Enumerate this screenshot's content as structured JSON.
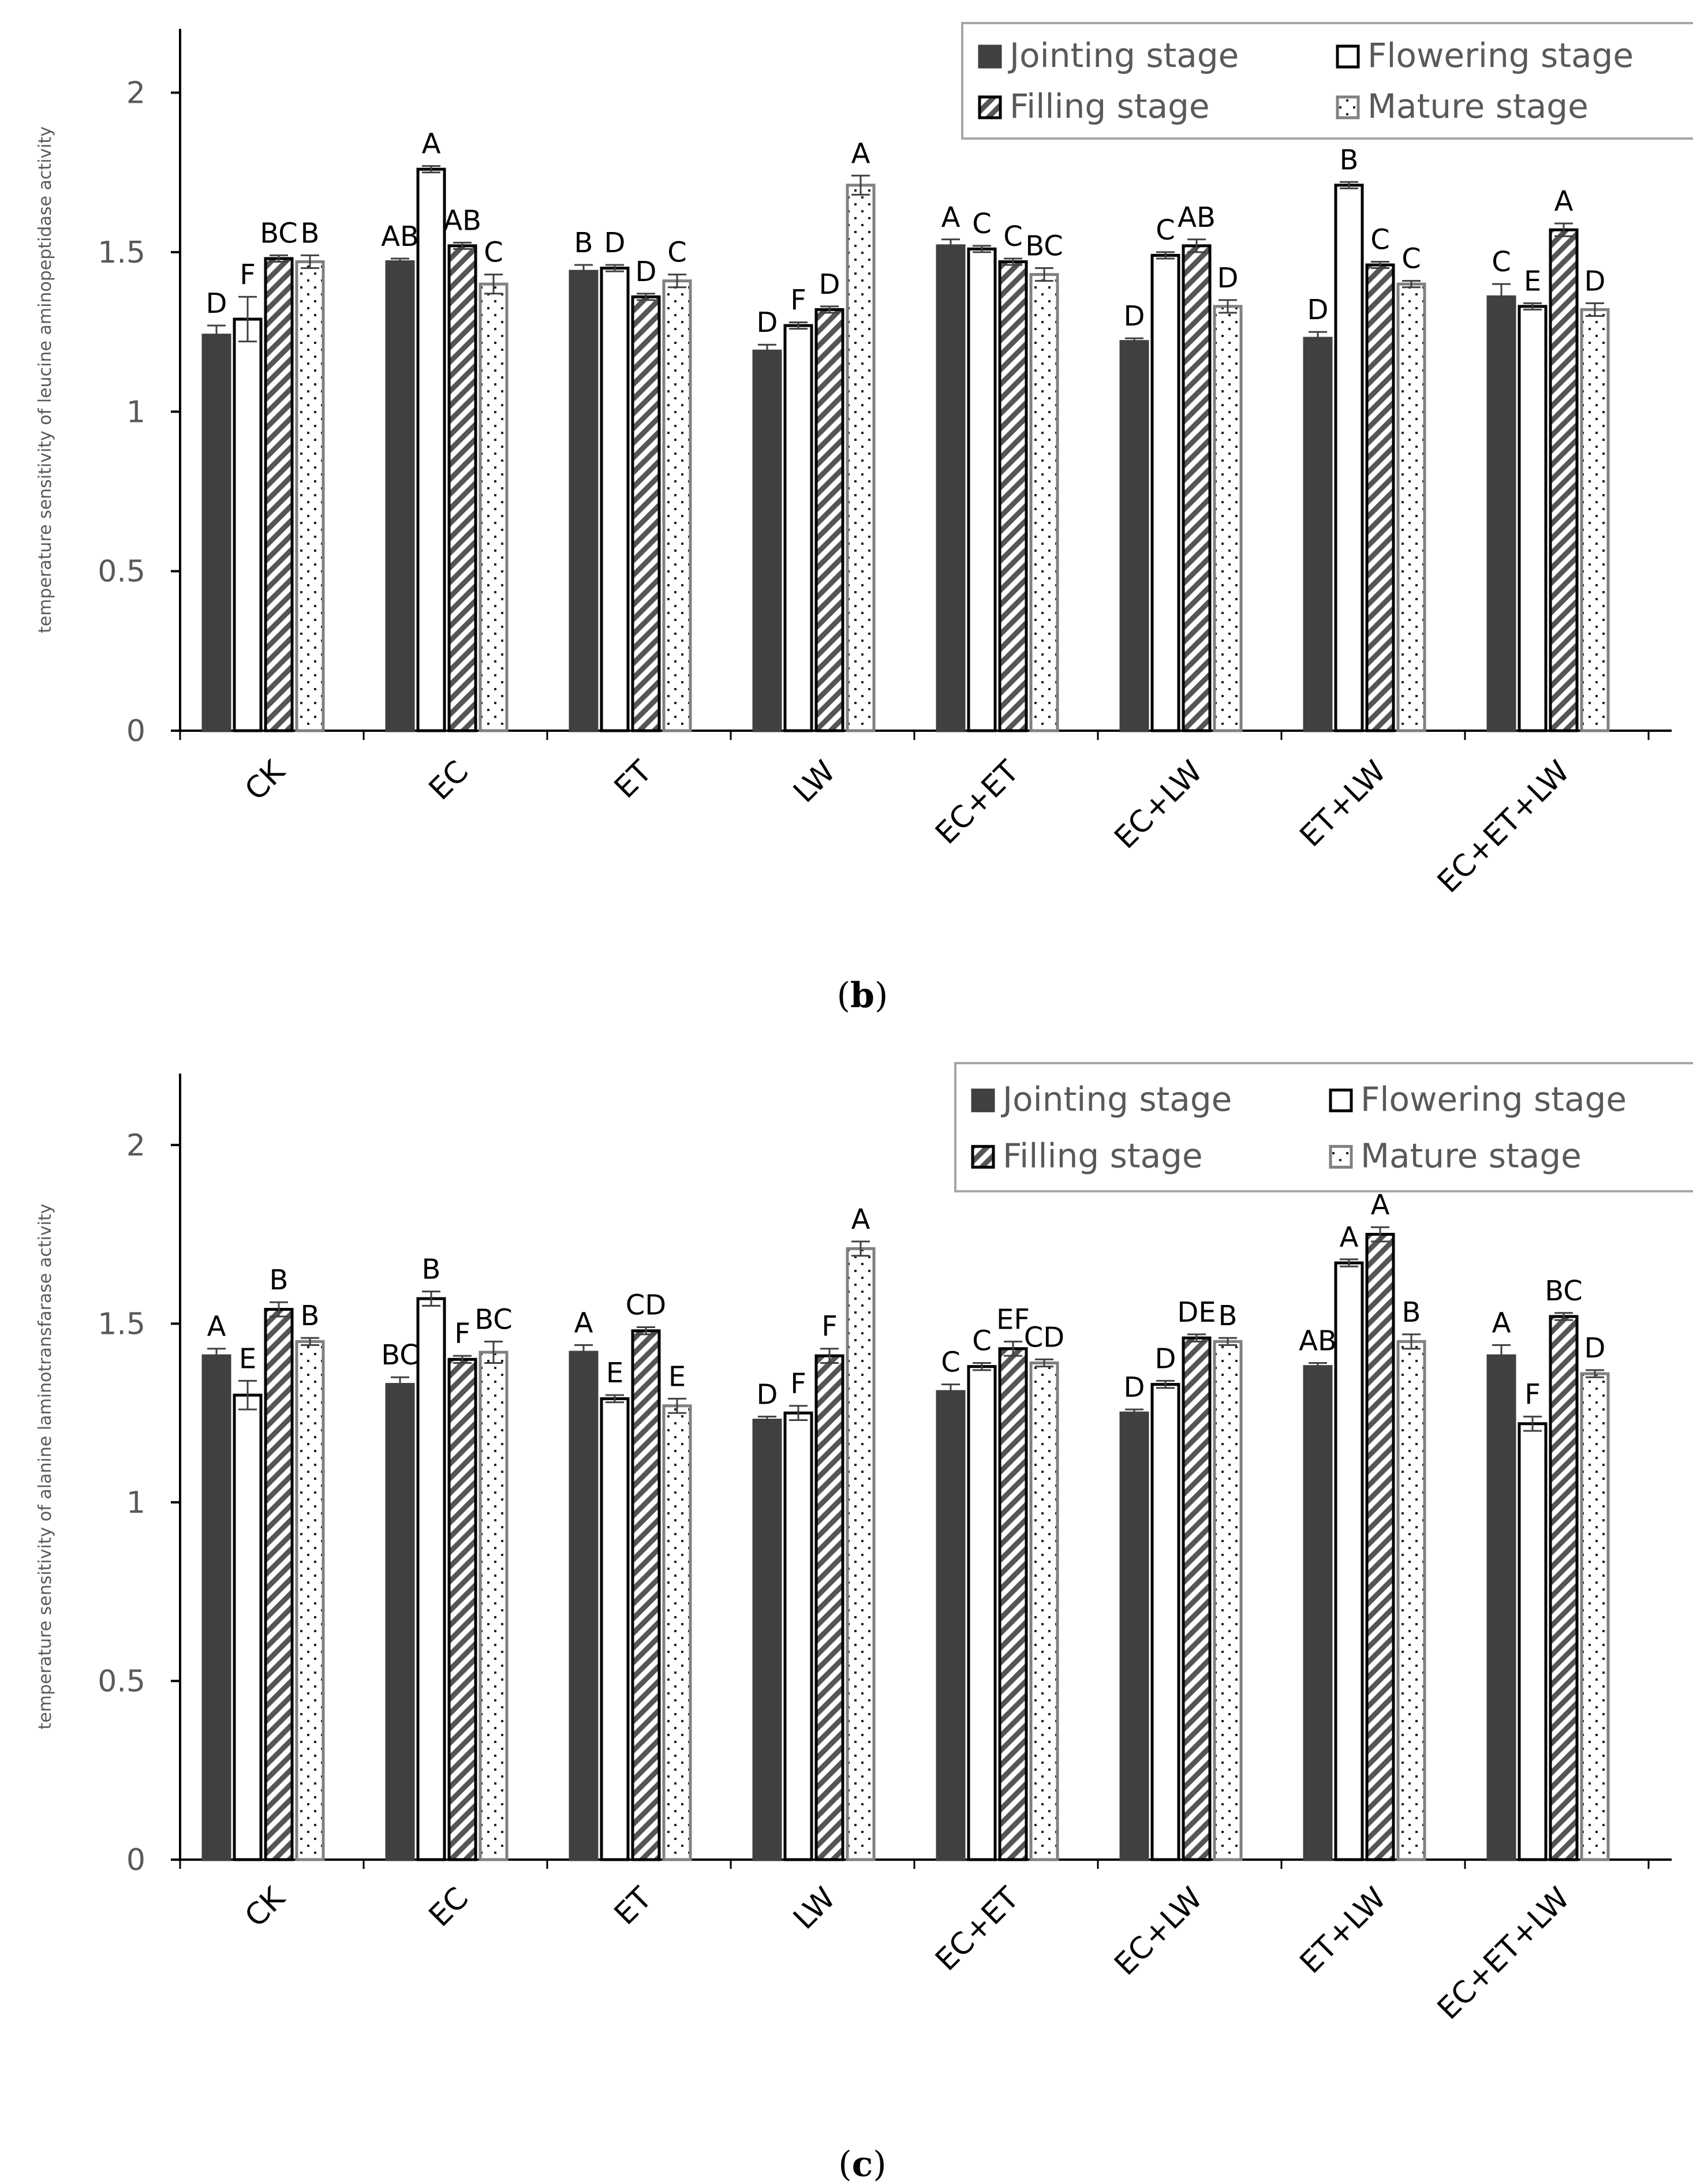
{
  "series_style": {
    "Jointing stage": {
      "fill": "#404040",
      "stroke": "#404040",
      "pattern": "solid"
    },
    "Flowering stage": {
      "fill": "#ffffff",
      "stroke": "#000000",
      "pattern": "none"
    },
    "Filling stage": {
      "fill": "#ffffff",
      "stroke": "#000000",
      "pattern": "diagonal"
    },
    "Mature stage": {
      "fill": "#ffffff",
      "stroke": "#808080",
      "pattern": "dots"
    }
  },
  "chart_data": [
    {
      "type": "bar",
      "panel_label": "b",
      "ylabel": "temperature sensitivity of leucine aminopeptidase activity",
      "xlabel": "",
      "ylim": [
        0,
        2.2
      ],
      "yticks": [
        0,
        0.5,
        1,
        1.5,
        2
      ],
      "ytick_labels": [
        "0",
        "0.5",
        "1",
        "1.5",
        "2"
      ],
      "legend_position": "top-right",
      "categories": [
        "CK",
        "EC",
        "ET",
        "LW",
        "EC+ET",
        "EC+LW",
        "ET+LW",
        "EC+ET+LW"
      ],
      "series": [
        {
          "name": "Jointing stage",
          "values": [
            1.24,
            1.47,
            1.44,
            1.19,
            1.52,
            1.22,
            1.23,
            1.36
          ],
          "errors": [
            0.03,
            0.01,
            0.02,
            0.02,
            0.02,
            0.01,
            0.02,
            0.04
          ],
          "labels": [
            "D",
            "AB",
            "B",
            "D",
            "A",
            "D",
            "D",
            "C"
          ]
        },
        {
          "name": "Flowering stage",
          "values": [
            1.29,
            1.76,
            1.45,
            1.27,
            1.51,
            1.49,
            1.71,
            1.33
          ],
          "errors": [
            0.07,
            0.01,
            0.01,
            0.01,
            0.01,
            0.01,
            0.01,
            0.01
          ],
          "labels": [
            "F",
            "A",
            "D",
            "F",
            "C",
            "C",
            "B",
            "E"
          ]
        },
        {
          "name": "Filling stage",
          "values": [
            1.48,
            1.52,
            1.36,
            1.32,
            1.47,
            1.52,
            1.46,
            1.57
          ],
          "errors": [
            0.01,
            0.01,
            0.01,
            0.01,
            0.01,
            0.02,
            0.01,
            0.02
          ],
          "labels": [
            "BC",
            "AB",
            "D",
            "D",
            "C",
            "AB",
            "C",
            "A"
          ]
        },
        {
          "name": "Mature stage",
          "values": [
            1.47,
            1.4,
            1.41,
            1.71,
            1.43,
            1.33,
            1.4,
            1.32
          ],
          "errors": [
            0.02,
            0.03,
            0.02,
            0.03,
            0.02,
            0.02,
            0.01,
            0.02
          ],
          "labels": [
            "B",
            "C",
            "C",
            "A",
            "BC",
            "D",
            "C",
            "D"
          ]
        }
      ]
    },
    {
      "type": "bar",
      "panel_label": "c",
      "ylabel": "temperature sensitivity of alanine laminotransfarase activity",
      "xlabel": "",
      "ylim": [
        0,
        2.2
      ],
      "yticks": [
        0,
        0.5,
        1,
        1.5,
        2
      ],
      "ytick_labels": [
        "0",
        "0.5",
        "1",
        "1.5",
        "2"
      ],
      "legend_position": "top-right",
      "categories": [
        "CK",
        "EC",
        "ET",
        "LW",
        "EC+ET",
        "EC+LW",
        "ET+LW",
        "EC+ET+LW"
      ],
      "series": [
        {
          "name": "Jointing stage",
          "values": [
            1.41,
            1.33,
            1.42,
            1.23,
            1.31,
            1.25,
            1.38,
            1.41
          ],
          "errors": [
            0.02,
            0.02,
            0.02,
            0.01,
            0.02,
            0.01,
            0.01,
            0.03
          ],
          "labels": [
            "A",
            "BC",
            "A",
            "D",
            "C",
            "D",
            "AB",
            "A"
          ]
        },
        {
          "name": "Flowering stage",
          "values": [
            1.3,
            1.57,
            1.29,
            1.25,
            1.38,
            1.33,
            1.67,
            1.22
          ],
          "errors": [
            0.04,
            0.02,
            0.01,
            0.02,
            0.01,
            0.01,
            0.01,
            0.02
          ],
          "labels": [
            "E",
            "B",
            "E",
            "F",
            "C",
            "D",
            "A",
            "F"
          ]
        },
        {
          "name": "Filling stage",
          "values": [
            1.54,
            1.4,
            1.48,
            1.41,
            1.43,
            1.46,
            1.75,
            1.52
          ],
          "errors": [
            0.02,
            0.01,
            0.01,
            0.02,
            0.02,
            0.01,
            0.02,
            0.01
          ],
          "labels": [
            "B",
            "F",
            "CD",
            "F",
            "EF",
            "DE",
            "A",
            "BC"
          ]
        },
        {
          "name": "Mature stage",
          "values": [
            1.45,
            1.42,
            1.27,
            1.71,
            1.39,
            1.45,
            1.45,
            1.36
          ],
          "errors": [
            0.01,
            0.03,
            0.02,
            0.02,
            0.01,
            0.01,
            0.02,
            0.01
          ],
          "labels": [
            "B",
            "BC",
            "E",
            "A",
            "CD",
            "B",
            "B",
            "D"
          ]
        }
      ]
    }
  ]
}
